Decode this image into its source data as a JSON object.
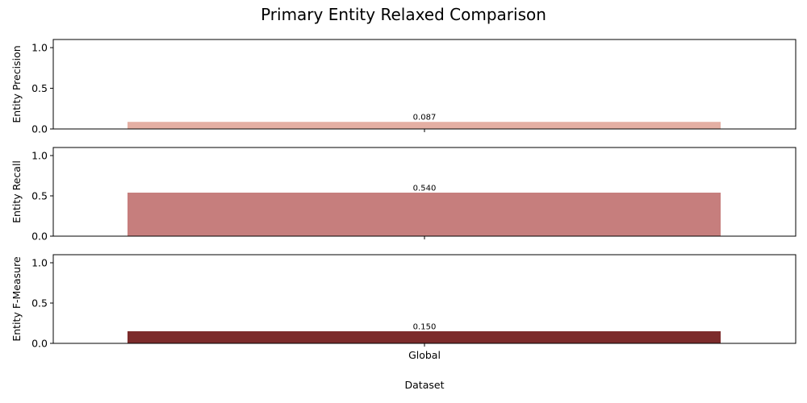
{
  "chart_data": {
    "type": "bar",
    "title": "Primary Entity Relaxed Comparison",
    "xlabel": "Dataset",
    "categories": [
      "Global"
    ],
    "panels": [
      {
        "ylabel": "Entity Precision",
        "values": [
          0.087
        ],
        "value_labels": [
          "0.087"
        ],
        "color": "#e4afa3",
        "ylim": [
          0,
          1.1
        ],
        "yticks": [
          "0.0",
          "0.5",
          "1.0"
        ]
      },
      {
        "ylabel": "Entity Recall",
        "values": [
          0.54
        ],
        "value_labels": [
          "0.540"
        ],
        "color": "#c67e7d",
        "ylim": [
          0,
          1.1
        ],
        "yticks": [
          "0.0",
          "0.5",
          "1.0"
        ]
      },
      {
        "ylabel": "Entity F-Measure",
        "values": [
          0.15
        ],
        "value_labels": [
          "0.150"
        ],
        "color": "#7c2b2b",
        "ylim": [
          0,
          1.1
        ],
        "yticks": [
          "0.0",
          "0.5",
          "1.0"
        ]
      }
    ],
    "grid": false,
    "legend": "none"
  }
}
